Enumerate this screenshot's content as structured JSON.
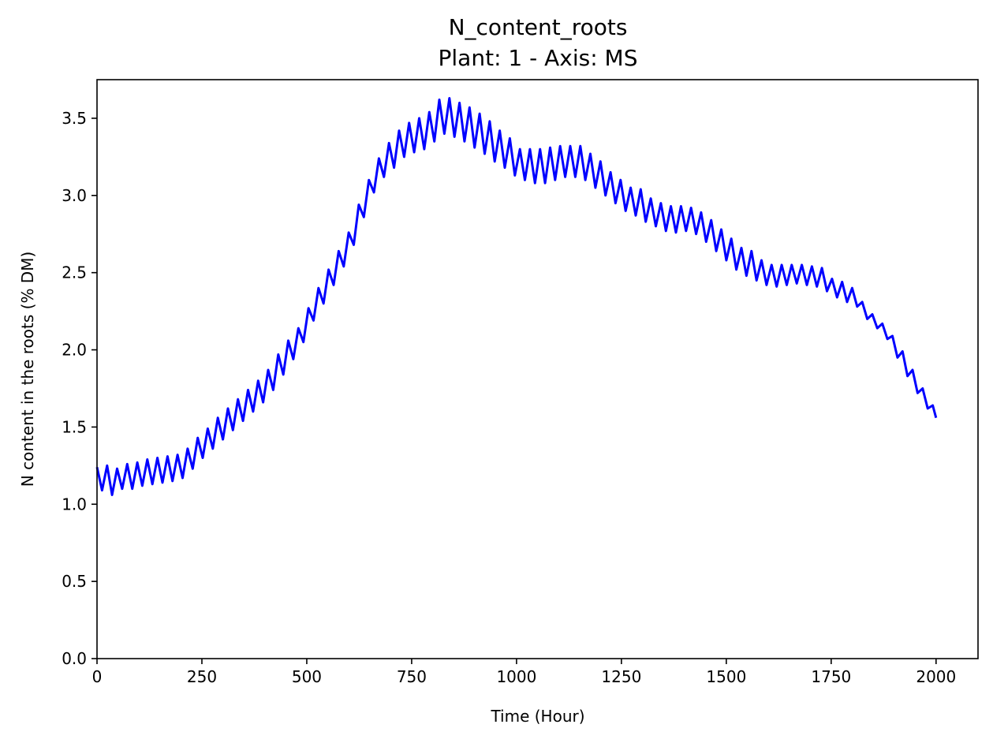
{
  "chart_data": {
    "type": "line",
    "title": "N_content_roots",
    "subtitle": "Plant: 1 - Axis: MS",
    "xlabel": "Time (Hour)",
    "ylabel": "N content in the roots (% DM)",
    "xlim": [
      0,
      2100
    ],
    "ylim": [
      0,
      3.75
    ],
    "xticks": [
      0,
      250,
      500,
      750,
      1000,
      1250,
      1500,
      1750,
      2000
    ],
    "xtick_labels": [
      "0",
      "250",
      "500",
      "750",
      "1000",
      "1250",
      "1500",
      "1750",
      "2000"
    ],
    "yticks": [
      0.0,
      0.5,
      1.0,
      1.5,
      2.0,
      2.5,
      3.0,
      3.5
    ],
    "ytick_labels": [
      "0.0",
      "0.5",
      "1.0",
      "1.5",
      "2.0",
      "2.5",
      "3.0",
      "3.5"
    ],
    "grid": false,
    "series": [
      {
        "color": "#0000ff",
        "x": [
          0,
          12,
          24,
          36,
          48,
          60,
          72,
          84,
          96,
          108,
          120,
          132,
          144,
          156,
          168,
          180,
          192,
          204,
          216,
          228,
          240,
          252,
          264,
          276,
          288,
          300,
          312,
          324,
          336,
          348,
          360,
          372,
          384,
          396,
          408,
          420,
          432,
          444,
          456,
          468,
          480,
          492,
          504,
          516,
          528,
          540,
          552,
          564,
          576,
          588,
          600,
          612,
          624,
          636,
          648,
          660,
          672,
          684,
          696,
          708,
          720,
          732,
          744,
          756,
          768,
          780,
          792,
          804,
          816,
          828,
          840,
          852,
          864,
          876,
          888,
          900,
          912,
          924,
          936,
          948,
          960,
          972,
          984,
          996,
          1008,
          1020,
          1032,
          1044,
          1056,
          1068,
          1080,
          1092,
          1104,
          1116,
          1128,
          1140,
          1152,
          1164,
          1176,
          1188,
          1200,
          1212,
          1224,
          1236,
          1248,
          1260,
          1272,
          1284,
          1296,
          1308,
          1320,
          1332,
          1344,
          1356,
          1368,
          1380,
          1392,
          1404,
          1416,
          1428,
          1440,
          1452,
          1464,
          1476,
          1488,
          1500,
          1512,
          1524,
          1536,
          1548,
          1560,
          1572,
          1584,
          1596,
          1608,
          1620,
          1632,
          1644,
          1656,
          1668,
          1680,
          1692,
          1704,
          1716,
          1728,
          1740,
          1752,
          1764,
          1776,
          1788,
          1800,
          1812,
          1824,
          1836,
          1848,
          1860,
          1872,
          1884,
          1896,
          1908,
          1920,
          1932,
          1944,
          1956,
          1968,
          1980,
          1992,
          2000
        ],
        "values": [
          1.24,
          1.09,
          1.25,
          1.06,
          1.23,
          1.1,
          1.26,
          1.1,
          1.27,
          1.12,
          1.29,
          1.13,
          1.3,
          1.14,
          1.31,
          1.15,
          1.32,
          1.17,
          1.36,
          1.23,
          1.43,
          1.3,
          1.49,
          1.36,
          1.56,
          1.42,
          1.62,
          1.48,
          1.68,
          1.54,
          1.74,
          1.6,
          1.8,
          1.66,
          1.87,
          1.74,
          1.97,
          1.84,
          2.06,
          1.94,
          2.14,
          2.05,
          2.27,
          2.19,
          2.4,
          2.3,
          2.52,
          2.42,
          2.64,
          2.54,
          2.76,
          2.68,
          2.94,
          2.86,
          3.1,
          3.02,
          3.24,
          3.12,
          3.34,
          3.18,
          3.42,
          3.25,
          3.47,
          3.28,
          3.5,
          3.3,
          3.54,
          3.35,
          3.62,
          3.4,
          3.63,
          3.38,
          3.6,
          3.35,
          3.57,
          3.31,
          3.53,
          3.27,
          3.48,
          3.22,
          3.42,
          3.18,
          3.37,
          3.13,
          3.3,
          3.1,
          3.3,
          3.08,
          3.3,
          3.08,
          3.31,
          3.1,
          3.32,
          3.12,
          3.32,
          3.12,
          3.32,
          3.1,
          3.27,
          3.05,
          3.22,
          3.0,
          3.15,
          2.95,
          3.1,
          2.9,
          3.05,
          2.87,
          3.04,
          2.83,
          2.98,
          2.8,
          2.95,
          2.77,
          2.93,
          2.76,
          2.93,
          2.77,
          2.92,
          2.75,
          2.89,
          2.7,
          2.84,
          2.64,
          2.78,
          2.58,
          2.72,
          2.52,
          2.66,
          2.48,
          2.64,
          2.45,
          2.58,
          2.42,
          2.55,
          2.41,
          2.55,
          2.42,
          2.55,
          2.43,
          2.55,
          2.42,
          2.54,
          2.41,
          2.53,
          2.38,
          2.46,
          2.34,
          2.44,
          2.31,
          2.4,
          2.28,
          2.31,
          2.2,
          2.23,
          2.14,
          2.17,
          2.07,
          2.09,
          1.95,
          1.99,
          1.83,
          1.87,
          1.72,
          1.75,
          1.62,
          1.64,
          1.56
        ]
      }
    ]
  }
}
